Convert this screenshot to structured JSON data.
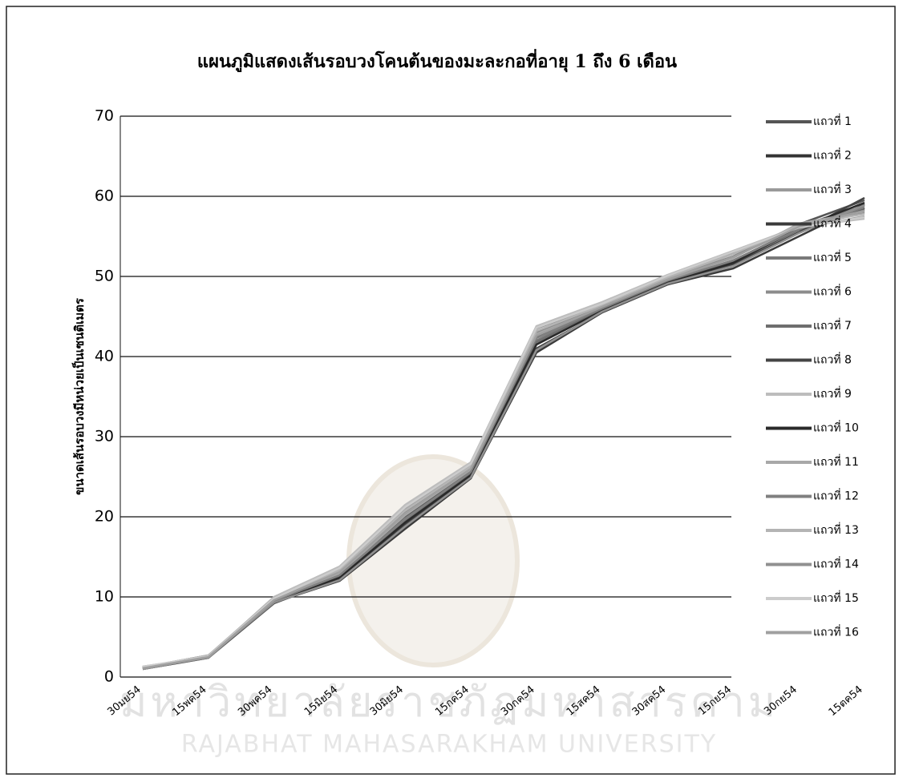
{
  "chart_data": {
    "type": "line",
    "title": "แผนภูมิแสดงเส้นรอบวงโคนต้นของมะละกอที่อายุ 1 ถึง 6 เดือน",
    "y_label": "ขนาดเส้นรอบวงมีหน่วยเป็นเซนติเมตร",
    "watermark": [
      "มหาวิทยาลัยราชภัฏมหาสารคาม",
      "RAJABHAT MAHASARAKHAM UNIVERSITY"
    ],
    "categories": [
      "30มย54",
      "15พค54",
      "30พค54",
      "15มิย54",
      "30มิย54",
      "15กค54",
      "30กค54",
      "15สค54",
      "30สค54",
      "15กย54",
      "30กย54",
      "15ตค54"
    ],
    "ylim": [
      0,
      70
    ],
    "yticks": [
      0,
      10,
      20,
      30,
      40,
      50,
      60,
      70
    ],
    "grid": true,
    "legend": "right",
    "series": [
      {
        "name": "แถวที่ 1",
        "color": "#555555",
        "values": [
          1.2,
          2.6,
          9.6,
          12.8,
          20,
          25.8,
          42.5,
          46.2,
          49.5,
          52.5,
          56.5,
          59.5
        ]
      },
      {
        "name": "แถวที่ 2",
        "color": "#333333",
        "values": [
          1.1,
          2.5,
          9.4,
          12.2,
          19.2,
          25,
          41.5,
          45.8,
          49,
          51.5,
          55.5,
          58.5
        ]
      },
      {
        "name": "แถวที่ 3",
        "color": "#9a9a9a",
        "values": [
          1,
          2.4,
          9.8,
          13.5,
          21,
          26.5,
          43.5,
          46.5,
          50,
          53,
          56,
          57.5
        ]
      },
      {
        "name": "แถวที่ 4",
        "color": "#3a3a3a",
        "values": [
          1.2,
          2.7,
          9.3,
          12,
          18.5,
          24.8,
          40.5,
          45.5,
          49,
          51,
          55,
          59
        ]
      },
      {
        "name": "แถวที่ 5",
        "color": "#7a7a7a",
        "values": [
          1,
          2.5,
          9.5,
          12.6,
          19.8,
          25.5,
          42,
          46,
          49.5,
          52,
          56,
          58
        ]
      },
      {
        "name": "แถวที่ 6",
        "color": "#8c8c8c",
        "values": [
          1.1,
          2.6,
          9.7,
          13,
          20.5,
          26,
          43,
          46.3,
          49.8,
          52.5,
          56.3,
          58.8
        ]
      },
      {
        "name": "แถวที่ 7",
        "color": "#6e6e6e",
        "values": [
          1.3,
          2.5,
          9.5,
          12.5,
          19.5,
          25.3,
          41.8,
          45.9,
          49.3,
          51.8,
          55.8,
          58.3
        ]
      },
      {
        "name": "แถวที่ 8",
        "color": "#444444",
        "values": [
          1,
          2.4,
          9.2,
          12.3,
          19,
          25,
          41,
          45.5,
          49,
          51.5,
          55.5,
          59.8
        ]
      },
      {
        "name": "แถวที่ 9",
        "color": "#bdbdbd",
        "values": [
          1.1,
          2.6,
          10,
          13.8,
          21.5,
          26.8,
          43.8,
          46.8,
          50.2,
          53.2,
          56.2,
          57.2
        ]
      },
      {
        "name": "แถวที่ 10",
        "color": "#2a2a2a",
        "values": [
          1.2,
          2.5,
          9.4,
          12.4,
          19.3,
          25.2,
          41.5,
          45.7,
          49.2,
          51.7,
          56,
          59.2
        ]
      },
      {
        "name": "แถวที่ 11",
        "color": "#a8a8a8",
        "values": [
          1,
          2.5,
          9.6,
          12.9,
          20.2,
          25.9,
          42.8,
          46.1,
          49.7,
          52.3,
          56.6,
          58.1
        ]
      },
      {
        "name": "แถวที่ 12",
        "color": "#808080",
        "values": [
          1.1,
          2.4,
          9.5,
          12.7,
          19.7,
          25.6,
          42.3,
          46,
          49.5,
          52,
          55.9,
          58.6
        ]
      },
      {
        "name": "แถวที่ 13",
        "color": "#b4b4b4",
        "values": [
          1.2,
          2.7,
          9.9,
          13.3,
          20.8,
          26.3,
          43.2,
          46.4,
          49.9,
          52.8,
          56.4,
          57.8
        ]
      },
      {
        "name": "แถวที่ 14",
        "color": "#909090",
        "values": [
          1,
          2.5,
          9.3,
          12.1,
          18.8,
          24.9,
          40.8,
          45.6,
          49.1,
          51.3,
          55.4,
          58.9
        ]
      },
      {
        "name": "แถวที่ 15",
        "color": "#cccccc",
        "values": [
          1.3,
          2.6,
          9.8,
          13.6,
          21.2,
          26.6,
          43.6,
          46.6,
          50.1,
          53.1,
          56.1,
          57.4
        ]
      },
      {
        "name": "แถวที่ 16",
        "color": "#a0a0a0",
        "values": [
          1.1,
          2.5,
          9.6,
          13.1,
          20.4,
          26,
          42.6,
          46.2,
          49.6,
          52.4,
          56.2,
          58.2
        ]
      }
    ]
  }
}
